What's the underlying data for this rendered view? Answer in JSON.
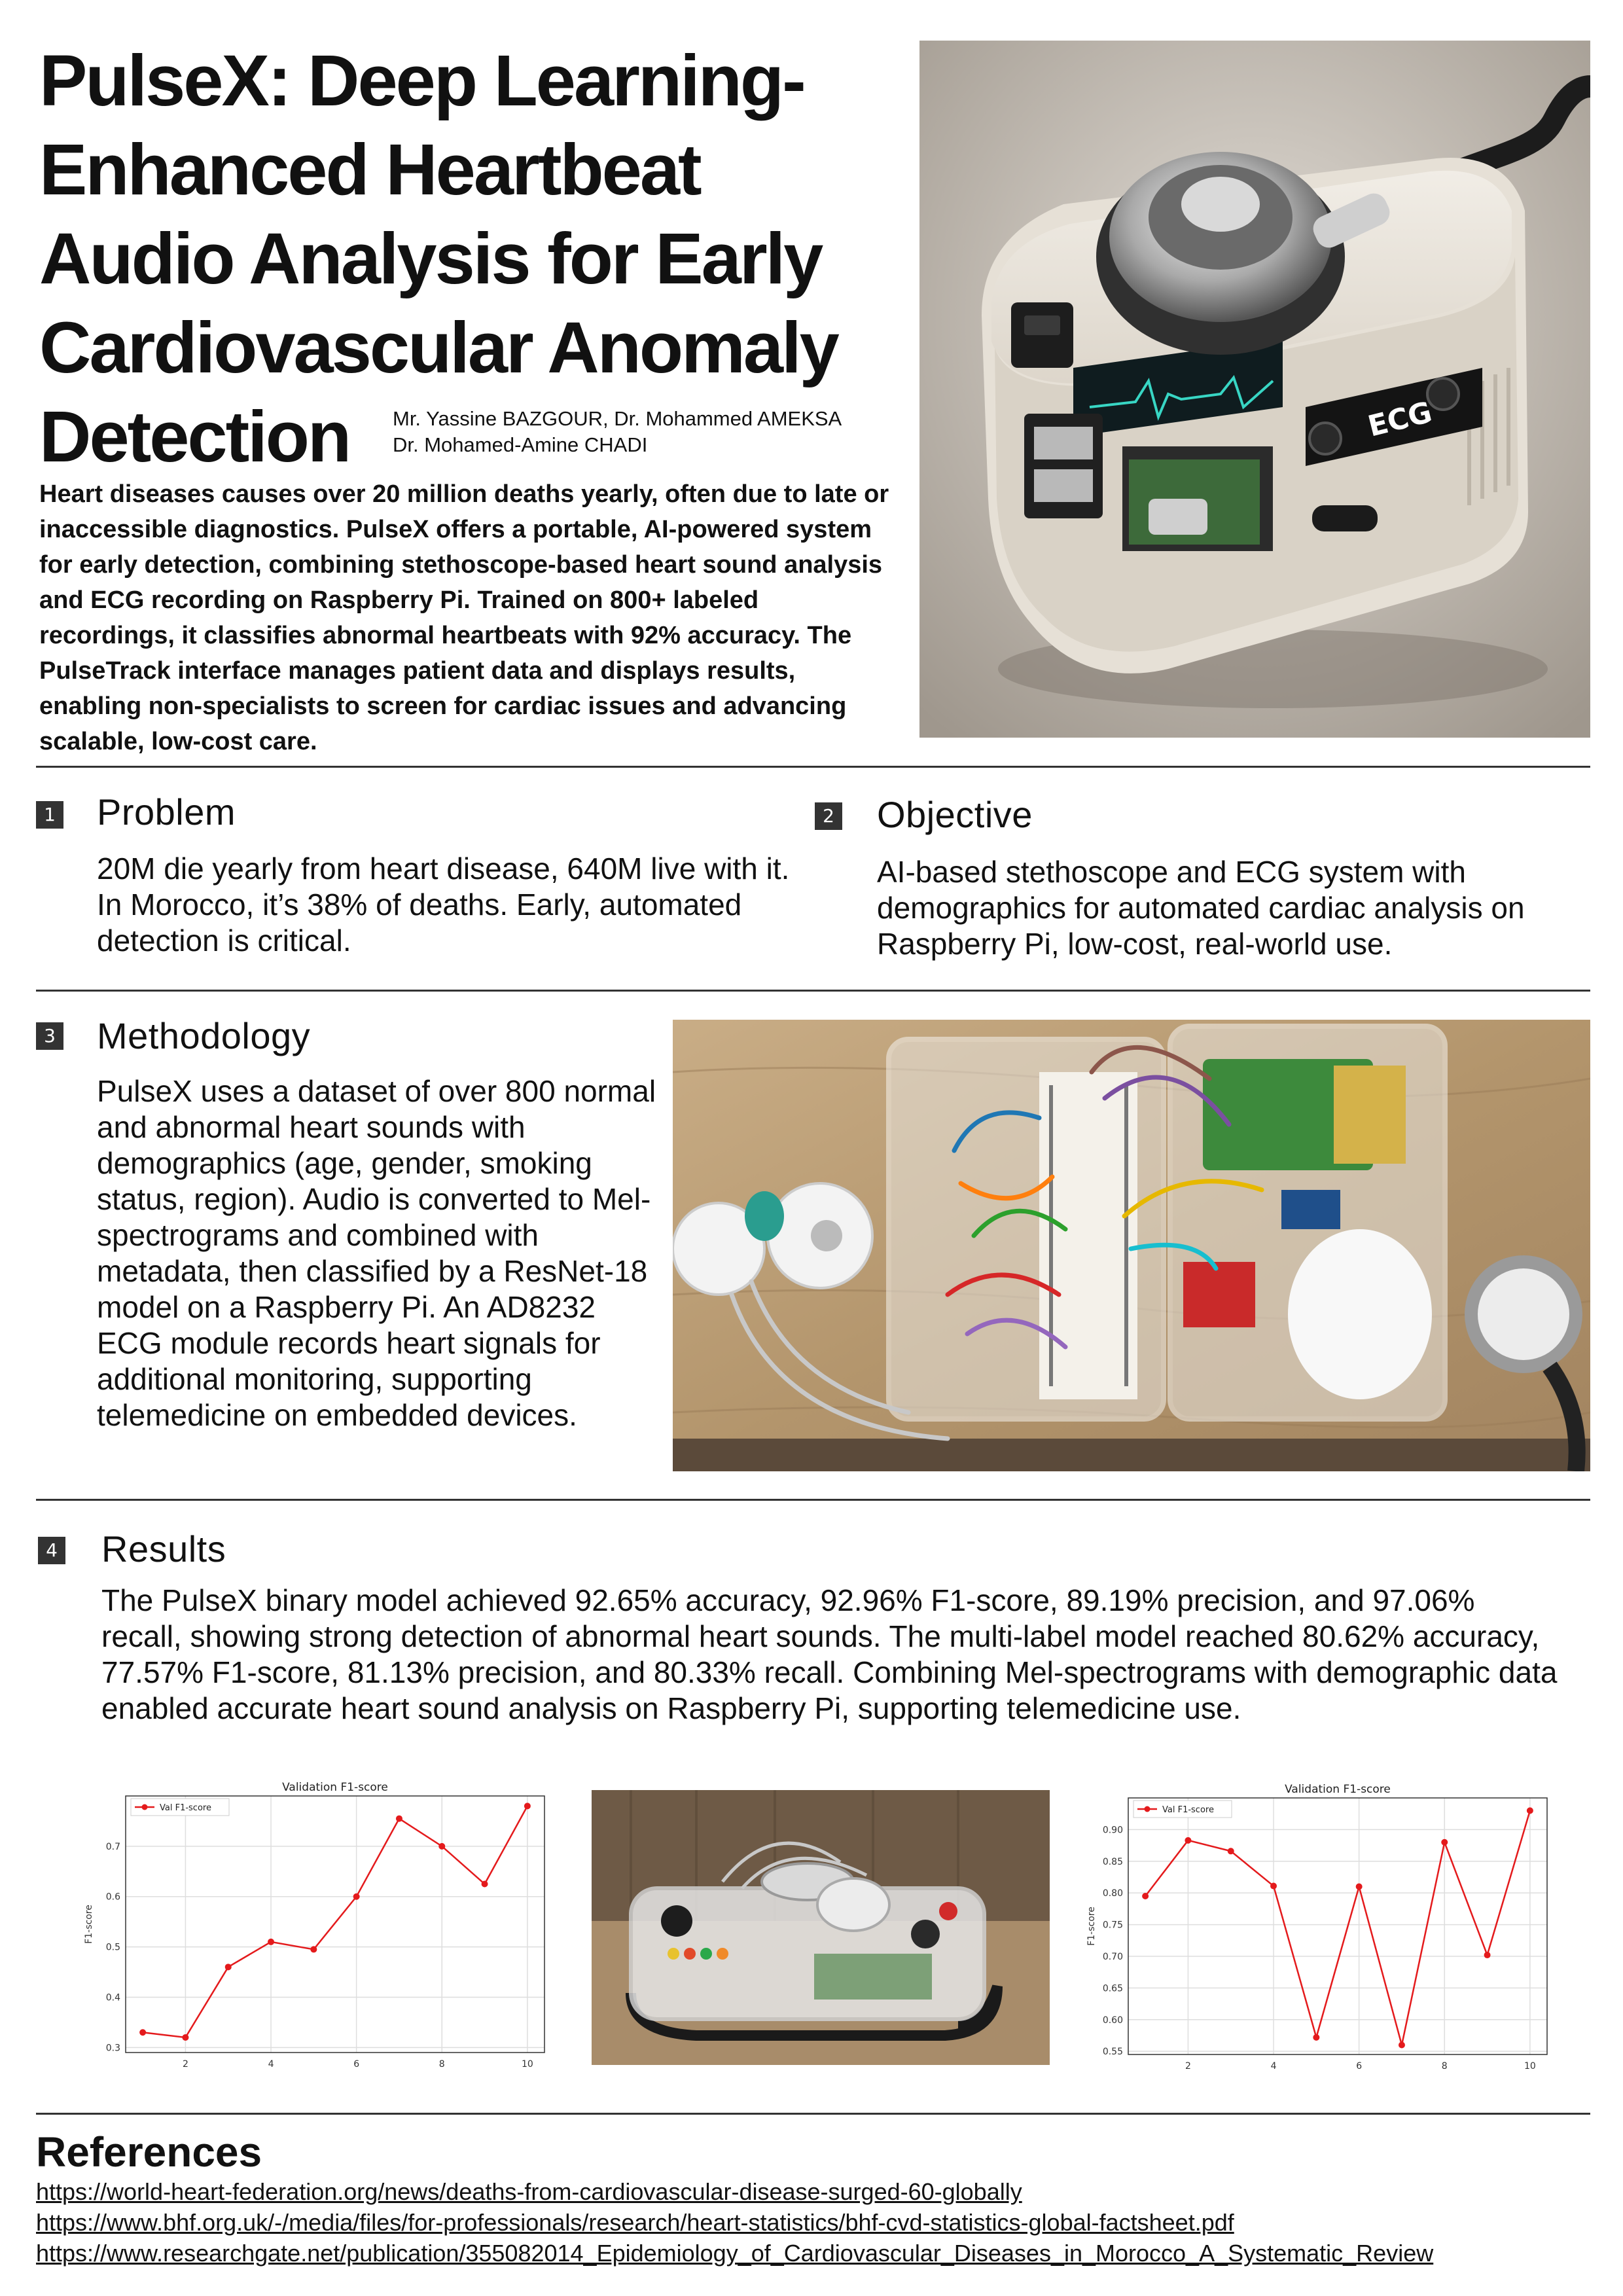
{
  "title_lines": [
    "PulseX: Deep Learning-",
    "Enhanced Heartbeat",
    "Audio Analysis for Early",
    "Cardiovascular Anomaly",
    "Detection"
  ],
  "authors": [
    "Mr. Yassine BAZGOUR, Dr. Mohammed AMEKSA",
    "Dr. Mohamed-Amine CHADI"
  ],
  "abstract": "Heart diseases causes over 20 million deaths yearly, often due to late or inaccessible diagnostics. PulseX offers a portable, AI-powered system for early detection, combining stethoscope-based heart sound analysis and ECG recording on Raspberry Pi. Trained on 800+ labeled recordings, it classifies abnormal heartbeats with 92% accuracy. The PulseTrack interface manages patient data and displays results, enabling non-specialists to screen for cardiac issues and advancing scalable, low-cost care.",
  "hero": {
    "device_label": "ECG"
  },
  "sections": {
    "problem": {
      "num": "1",
      "title": "Problem",
      "body": "20M die yearly from heart disease, 640M live with it. In Morocco, it’s 38% of deaths. Early, automated detection is critical."
    },
    "objective": {
      "num": "2",
      "title": "Objective",
      "body": "AI-based stethoscope and ECG system with demographics for automated cardiac analysis on Raspberry Pi, low-cost, real-world use."
    },
    "methodology": {
      "num": "3",
      "title": "Methodology",
      "body": "PulseX uses a dataset of over 800 normal and abnormal heart sounds with demographics (age, gender, smoking status, region). Audio is converted to Mel-spectrograms and combined with metadata, then classified by a ResNet-18 model on a Raspberry Pi. An AD8232 ECG module records heart signals for additional monitoring, supporting telemedicine on embedded devices."
    },
    "results": {
      "num": "4",
      "title": "Results",
      "body": "The PulseX binary model achieved 92.65% accuracy, 92.96% F1-score, 89.19% precision, and 97.06% recall, showing strong detection of abnormal heart sounds. The multi-label model reached 80.62% accuracy, 77.57% F1-score, 81.13% precision, and 80.33% recall. Combining Mel-spectrograms with demographic data enabled accurate heart sound analysis on Raspberry Pi, supporting telemedicine use."
    }
  },
  "colors": {
    "accent": "#333333",
    "series": "#e41a1c",
    "wood": "#b89a72"
  },
  "chart_data": [
    {
      "type": "line",
      "title": "Validation F1-score",
      "ylabel": "F1-score",
      "xlabel": "",
      "x": [
        1,
        2,
        3,
        4,
        5,
        6,
        7,
        8,
        9,
        10
      ],
      "series": [
        {
          "name": "Val F1-score",
          "values": [
            0.33,
            0.32,
            0.46,
            0.51,
            0.495,
            0.6,
            0.755,
            0.7,
            0.625,
            0.78
          ]
        }
      ],
      "xlim": [
        0.6,
        10.4
      ],
      "ylim": [
        0.29,
        0.8
      ],
      "xticks": [
        2,
        4,
        6,
        8,
        10
      ],
      "xtick_labels": [
        "2",
        "4",
        "6",
        "8",
        "10"
      ],
      "yticks": [
        0.3,
        0.4,
        0.5,
        0.6,
        0.7
      ],
      "ytick_labels": [
        "0.3",
        "0.4",
        "0.5",
        "0.6",
        "0.7"
      ],
      "grid": true,
      "legend": "top-left"
    },
    {
      "type": "line",
      "title": "Validation F1-score",
      "ylabel": "F1-score",
      "xlabel": "",
      "x": [
        1,
        2,
        3,
        4,
        5,
        6,
        7,
        8,
        9,
        10
      ],
      "series": [
        {
          "name": "Val F1-score",
          "values": [
            0.795,
            0.883,
            0.866,
            0.811,
            0.572,
            0.81,
            0.56,
            0.88,
            0.702,
            0.93
          ]
        }
      ],
      "xlim": [
        0.6,
        10.4
      ],
      "ylim": [
        0.545,
        0.95
      ],
      "xticks": [
        2,
        4,
        6,
        8,
        10
      ],
      "xtick_labels": [
        "2",
        "4",
        "6",
        "8",
        "10"
      ],
      "yticks": [
        0.55,
        0.6,
        0.65,
        0.7,
        0.75,
        0.8,
        0.85,
        0.9
      ],
      "ytick_labels": [
        "0.55",
        "0.60",
        "0.65",
        "0.70",
        "0.75",
        "0.80",
        "0.85",
        "0.90"
      ],
      "grid": true,
      "legend": "top-left"
    }
  ],
  "references": {
    "title": "References",
    "links": [
      "https://world-heart-federation.org/news/deaths-from-cardiovascular-disease-surged-60-globally",
      "https://www.bhf.org.uk/-/media/files/for-professionals/research/heart-statistics/bhf-cvd-statistics-global-factsheet.pdf",
      "https://www.researchgate.net/publication/355082014_Epidemiology_of_Cardiovascular_Diseases_in_Morocco_A_Systematic_Review"
    ]
  }
}
